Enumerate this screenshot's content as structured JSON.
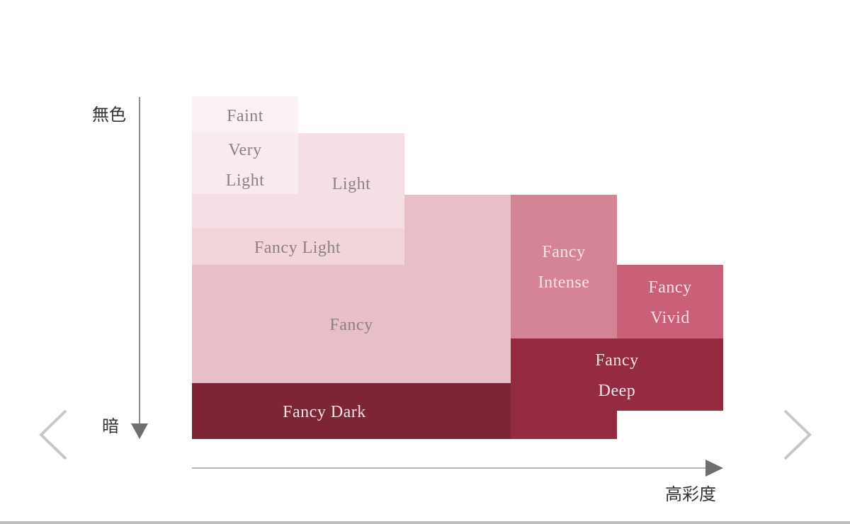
{
  "axes": {
    "y_top_label": "無色",
    "y_bottom_label": "暗",
    "x_label": "高彩度",
    "axis_color": "#8c8c8c"
  },
  "grades": [
    {
      "name": "Faint",
      "lines": [
        "Faint"
      ],
      "color": "#fbf1f3"
    },
    {
      "name": "Very Light",
      "lines": [
        "Very",
        "Light"
      ],
      "color": "#f9eaee"
    },
    {
      "name": "Light",
      "lines": [
        "Light"
      ],
      "color": "#f6dfe4"
    },
    {
      "name": "Fancy Light",
      "lines": [
        "Fancy Light"
      ],
      "color": "#f2d5db"
    },
    {
      "name": "Fancy",
      "lines": [
        "Fancy"
      ],
      "color": "#e8bfc8"
    },
    {
      "name": "Fancy Intense",
      "lines": [
        "Fancy",
        "Intense"
      ],
      "color": "#d48495"
    },
    {
      "name": "Fancy Vivid",
      "lines": [
        "Fancy",
        "Vivid"
      ],
      "color": "#c96078"
    },
    {
      "name": "Fancy Deep",
      "lines": [
        "Fancy",
        "Deep"
      ],
      "color": "#952b40"
    },
    {
      "name": "Fancy Dark",
      "lines": [
        "Fancy Dark"
      ],
      "color": "#7d2535"
    }
  ],
  "nav": {
    "prev_icon": "chevron-left-icon",
    "next_icon": "chevron-right-icon"
  }
}
